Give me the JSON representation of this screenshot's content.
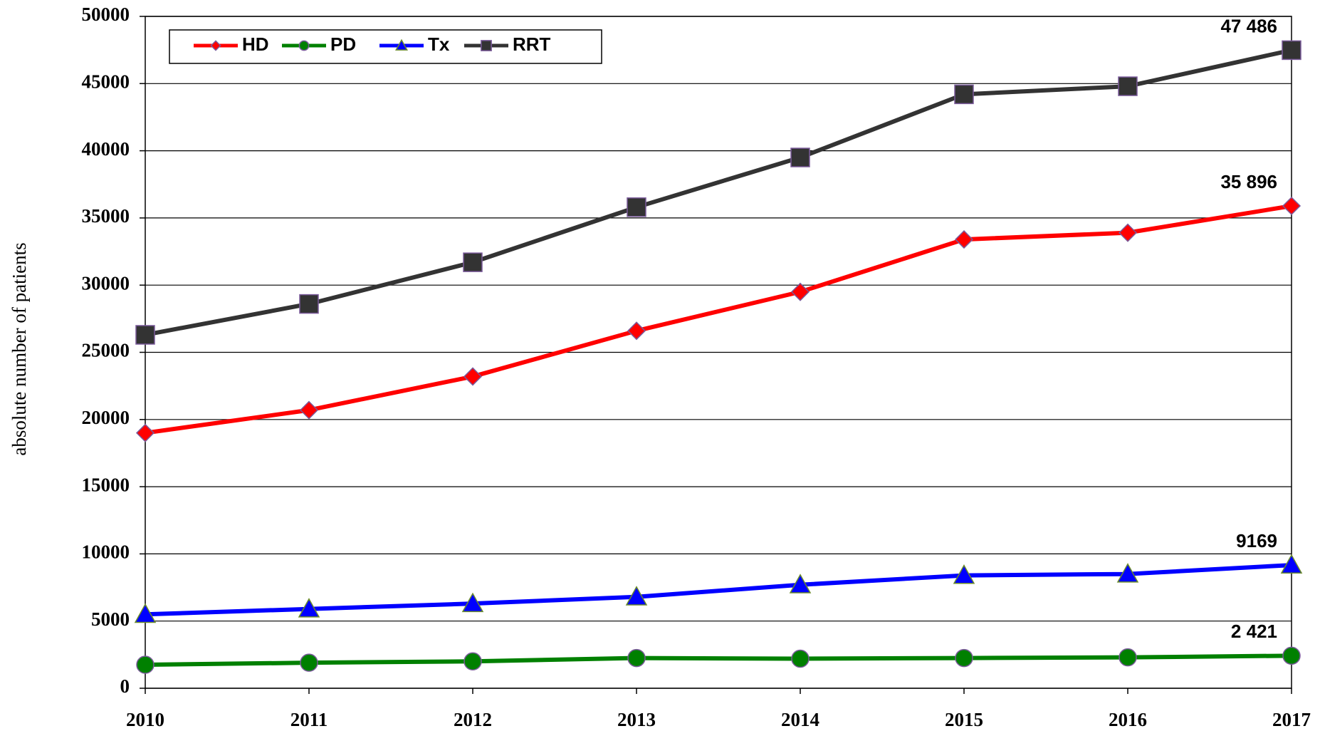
{
  "chart_data": {
    "type": "line",
    "y_label": "absolute number of patients",
    "categories": [
      "2010",
      "2011",
      "2012",
      "2013",
      "2014",
      "2015",
      "2016",
      "2017"
    ],
    "ylim": [
      0,
      50000
    ],
    "yticks": [
      0,
      5000,
      10000,
      15000,
      20000,
      25000,
      30000,
      35000,
      40000,
      45000,
      50000
    ],
    "grid": true,
    "legend": "top-left",
    "series": [
      {
        "name": "HD",
        "color": "#ff0000",
        "marker": "diamond",
        "values": [
          19000,
          20700,
          23200,
          26600,
          29500,
          33400,
          33900,
          35896
        ],
        "value_labels": [
          null,
          null,
          null,
          null,
          null,
          null,
          null,
          "35 896"
        ]
      },
      {
        "name": "PD",
        "color": "#008000",
        "marker": "circle",
        "values": [
          1750,
          1900,
          2000,
          2250,
          2200,
          2250,
          2300,
          2421
        ],
        "value_labels": [
          null,
          null,
          null,
          null,
          null,
          null,
          null,
          "2 421"
        ]
      },
      {
        "name": "Tx",
        "color": "#0000ff",
        "marker": "triangle",
        "values": [
          5500,
          5900,
          6300,
          6800,
          7700,
          8400,
          8500,
          9169
        ],
        "value_labels": [
          null,
          null,
          null,
          null,
          null,
          null,
          null,
          "9169"
        ]
      },
      {
        "name": "RRT",
        "color": "#333333",
        "marker": "square",
        "values": [
          26300,
          28600,
          31700,
          35800,
          39500,
          44200,
          44800,
          47486
        ],
        "value_labels": [
          null,
          null,
          null,
          null,
          null,
          null,
          null,
          "47 486"
        ]
      }
    ]
  }
}
